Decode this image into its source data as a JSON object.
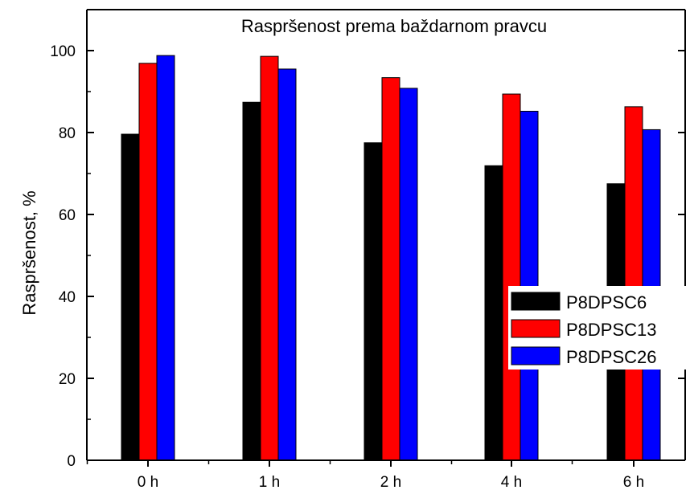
{
  "chart_data": {
    "type": "bar",
    "title": "Raspršenost prema baždarnom pravcu",
    "xlabel": "",
    "ylabel": "Raspršenost, %",
    "categories": [
      "0 h",
      "1 h",
      "2 h",
      "4 h",
      "6 h"
    ],
    "series": [
      {
        "name": "P8DPSC6",
        "color": "#000000",
        "values": [
          79.6,
          87.4,
          77.5,
          71.9,
          67.5
        ]
      },
      {
        "name": "P8DPSC13",
        "color": "#ff0000",
        "values": [
          96.9,
          98.6,
          93.4,
          89.4,
          86.3
        ]
      },
      {
        "name": "P8DPSC26",
        "color": "#0000ff",
        "values": [
          98.8,
          95.5,
          90.8,
          85.2,
          80.7
        ]
      }
    ],
    "ylim": [
      0,
      110
    ],
    "yticks": [
      "0",
      "20",
      "40",
      "60",
      "80",
      "100"
    ],
    "grid": false,
    "legend_position": "right"
  }
}
